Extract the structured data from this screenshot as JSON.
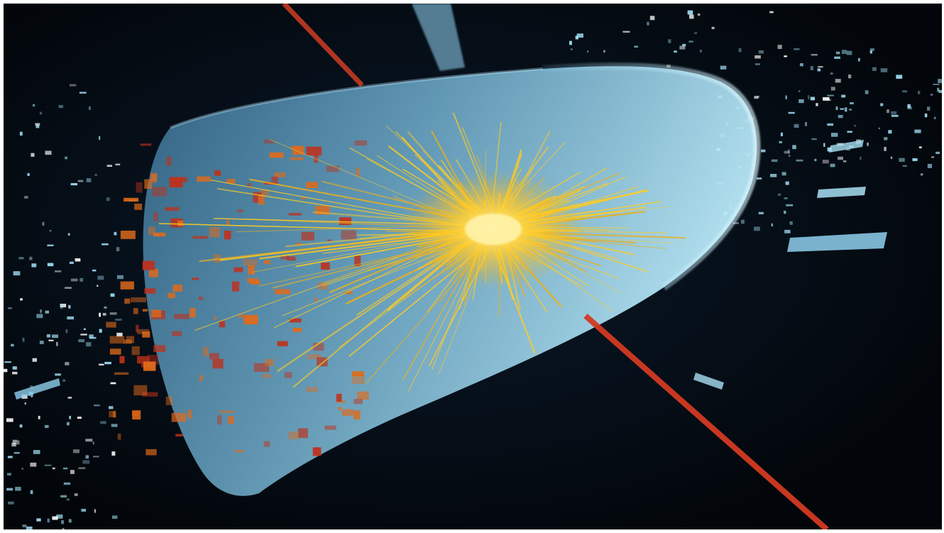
{
  "image": {
    "subject": "particle-collision-event-display",
    "colors": {
      "background": "#03070b",
      "cone": "#8fd8f2",
      "tracks": "#ffcc22",
      "core": "#fff2a0",
      "muon_line": "#d23a22",
      "deposits": "#e06a1a",
      "hits": "#9edcf2",
      "frame": "#ffffff"
    }
  }
}
